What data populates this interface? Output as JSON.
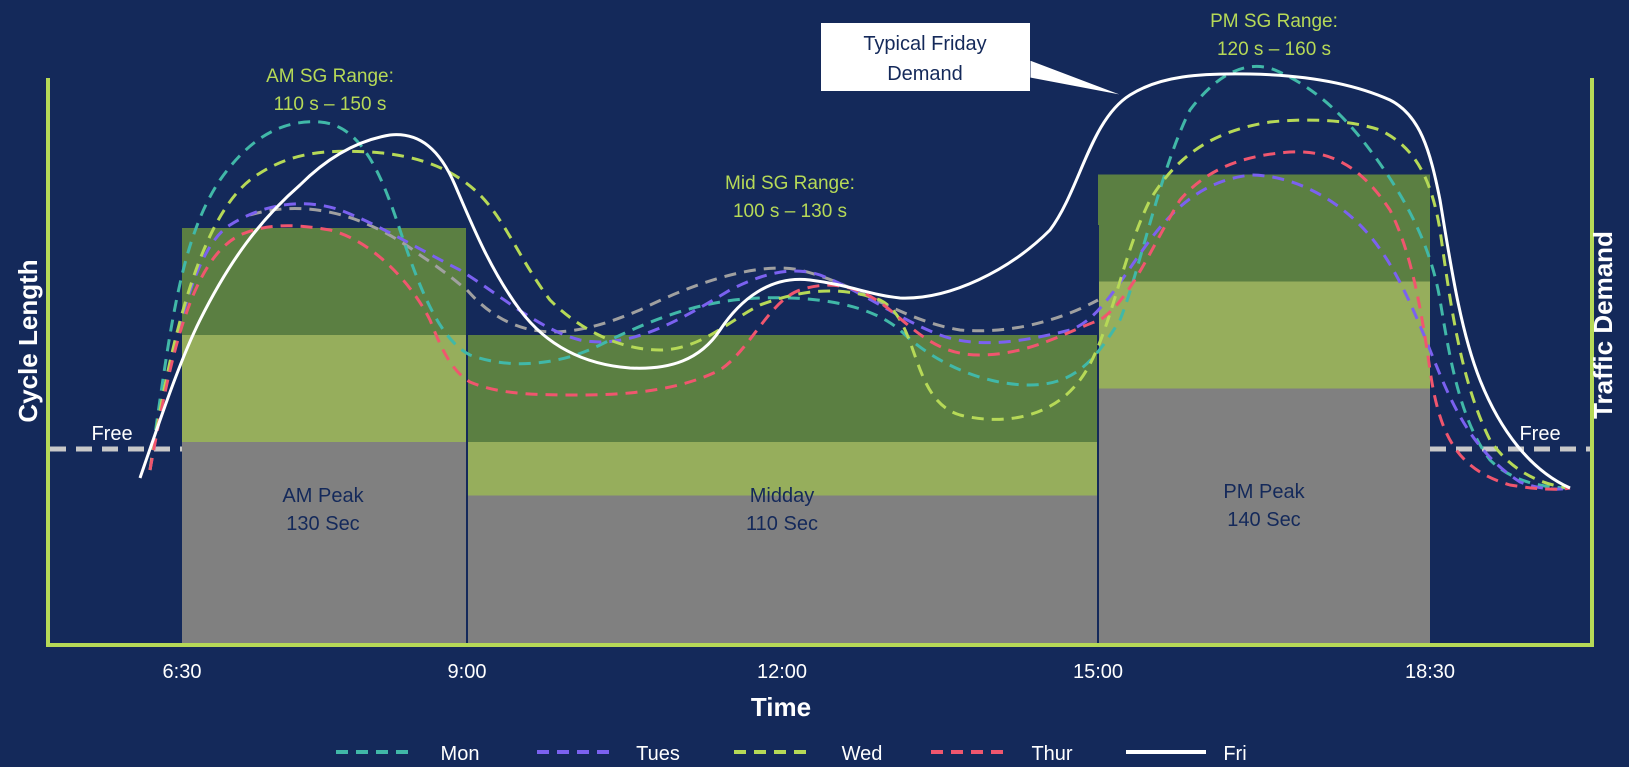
{
  "chart_data": {
    "type": "line",
    "xlabel": "Time",
    "ylabel_left": "Cycle Length",
    "ylabel_right": "Traffic Demand",
    "x_ticks": [
      "6:30",
      "9:00",
      "12:00",
      "15:00",
      "18:30"
    ],
    "free_label_left": "Free",
    "free_label_right": "Free",
    "periods": [
      {
        "name": "AM Peak",
        "value_label": "130 Sec",
        "cycle_s": 130,
        "sg_min": 110,
        "sg_max": 150,
        "range_title": "AM SG Range:",
        "range_text": "110 s – 150 s",
        "start": "6:30",
        "end": "9:00"
      },
      {
        "name": "Midday",
        "value_label": "110 Sec",
        "cycle_s": 110,
        "sg_min": 100,
        "sg_max": 130,
        "range_title": "Mid SG Range:",
        "range_text": "100 s – 130 s",
        "start": "9:00",
        "end": "15:00"
      },
      {
        "name": "PM Peak",
        "value_label": "140 Sec",
        "cycle_s": 140,
        "sg_min": 120,
        "sg_max": 160,
        "range_title": "PM SG Range:",
        "range_text": "120 s – 160 s",
        "start": "15:00",
        "end": "18:30"
      }
    ],
    "annotation": {
      "line1": "Typical Friday",
      "line2": "Demand"
    },
    "series": [
      {
        "name": "Mon",
        "color": "#41b8a8",
        "style": "dashed"
      },
      {
        "name": "Tues",
        "color": "#7b61f0",
        "style": "dashed"
      },
      {
        "name": "Wed",
        "color": "#b6d957",
        "style": "dashed"
      },
      {
        "name": "Thur",
        "color": "#f0566e",
        "style": "dashed"
      },
      {
        "name": "Fri",
        "color": "#ffffff",
        "style": "solid"
      }
    ],
    "legend_position": "bottom",
    "colors": {
      "background": "#14295a",
      "axis": "#b6d957",
      "cycle_block": "#808080",
      "sg_high": "#5b7f42",
      "sg_low": "#96ae5c",
      "free_line": "#c8c8c8",
      "midday_mon_wed_line": "#a0a0a0"
    }
  }
}
